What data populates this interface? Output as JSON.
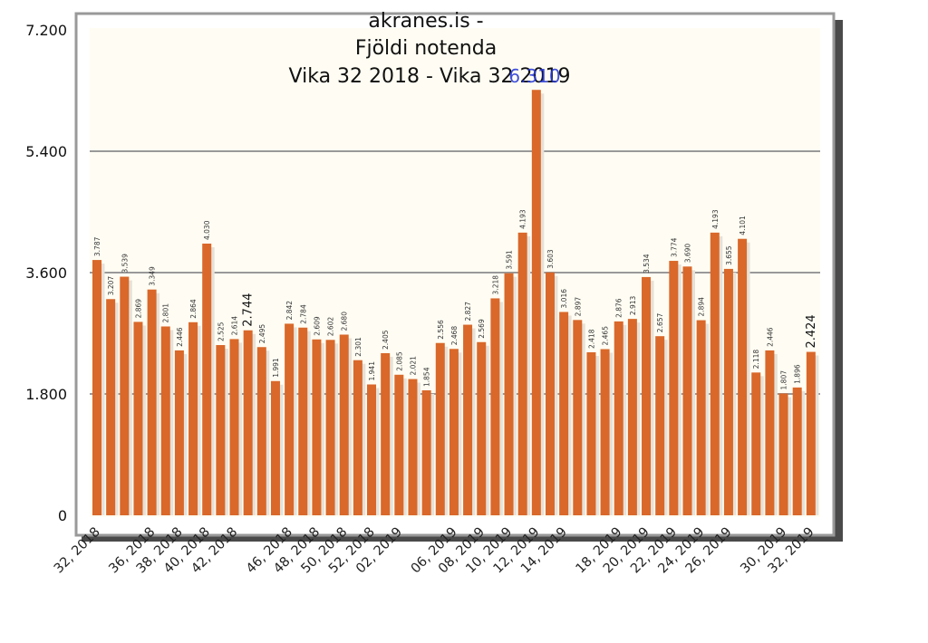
{
  "chart_data": {
    "type": "bar",
    "title_lines": [
      "akranes.is -",
      "Fjöldi notenda",
      "Vika 32 2018 - Vika 32 2019"
    ],
    "overlay_label": "6.310",
    "ylim": [
      0,
      7200
    ],
    "yticks": [
      0,
      1800,
      3600,
      5400,
      7200
    ],
    "ytick_labels": [
      "0",
      "1.800",
      "3.600",
      "5.400",
      "7.200"
    ],
    "x_tick_labels": [
      "32, 2018",
      "36, 2018",
      "38, 2018",
      "40, 2018",
      "42, 2018",
      "46, 2018",
      "48, 2018",
      "50, 2018",
      "52, 2018",
      "02, 2019",
      "06, 2019",
      "08, 2019",
      "10, 2019",
      "12, 2019",
      "14, 2019",
      "18, 2019",
      "20, 2019",
      "22, 2019",
      "24, 2019",
      "26, 2019",
      "30, 2019",
      "32, 2019"
    ],
    "x_tick_bar_index": [
      0,
      4,
      6,
      8,
      10,
      14,
      16,
      18,
      20,
      22,
      26,
      28,
      30,
      32,
      34,
      38,
      40,
      42,
      44,
      46,
      50,
      52
    ],
    "values": [
      3787,
      3207,
      3539,
      2869,
      3349,
      2801,
      2446,
      2864,
      4030,
      2525,
      2614,
      2744,
      2495,
      1991,
      2842,
      2784,
      2609,
      2602,
      2680,
      2301,
      1941,
      2405,
      2085,
      2021,
      1854,
      2556,
      2468,
      2827,
      2569,
      3218,
      3591,
      4193,
      6310,
      3603,
      3016,
      2897,
      2418,
      2465,
      2876,
      2913,
      3534,
      2657,
      3774,
      3690,
      2894,
      4193,
      3655,
      4101,
      2118,
      2446,
      1807,
      1896,
      2424
    ],
    "labels": [
      "3.787",
      "3.207",
      "3.539",
      "2.869",
      "3.349",
      "2.801",
      "2.446",
      "2.864",
      "4.030",
      "2.525",
      "2.614",
      "2.744",
      "2.495",
      "1.991",
      "2.842",
      "2.784",
      "2.609",
      "2.602",
      "2.680",
      "2.301",
      "1.941",
      "2.405",
      "2.085",
      "2.021",
      "1.854",
      "2.556",
      "2.468",
      "2.827",
      "2.569",
      "3.218",
      "3.591",
      "4.193",
      "",
      "3.603",
      "3.016",
      "2.897",
      "2.418",
      "2.465",
      "2.876",
      "2.913",
      "3.534",
      "2.657",
      "3.774",
      "3.690",
      "2.894",
      "4.193",
      "3.655",
      "4.101",
      "2.118",
      "2.446",
      "1.807",
      "1.896",
      "2.424"
    ],
    "emphasized_label_index": [
      11,
      52
    ],
    "red_label_index": [
      50
    ],
    "colors": {
      "bar": "#d9682a",
      "bar_shadow": "#e6e1d8",
      "plot_bg": "#fffdf3",
      "frame": "#999999",
      "frame_shadow": "#4a4a4a",
      "grid": "#999999",
      "overlay_label": "#2a3cd8",
      "red_label": "#e02020"
    },
    "grid": true
  }
}
